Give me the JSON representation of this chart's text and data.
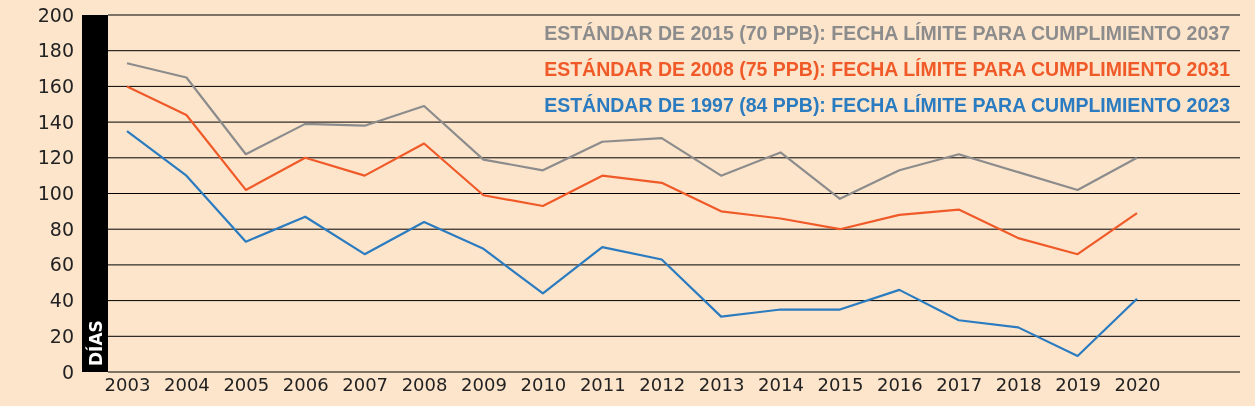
{
  "chart_data": {
    "type": "line",
    "ylabel": "DÍAS",
    "categories": [
      "2003",
      "2004",
      "2005",
      "2006",
      "2007",
      "2008",
      "2009",
      "2010",
      "2011",
      "2012",
      "2013",
      "2014",
      "2015",
      "2016",
      "2017",
      "2018",
      "2019",
      "2020"
    ],
    "ylim": [
      0,
      200
    ],
    "yticks": [
      0,
      20,
      40,
      60,
      80,
      100,
      120,
      140,
      160,
      180,
      200
    ],
    "grid": "y",
    "legend": "top right",
    "marker": "none",
    "line_style": "solid",
    "series": [
      {
        "name": "ESTÁNDAR DE 2015 (70 PPB): FECHA LÍMITE PARA CUMPLIMIENTO 2037",
        "color": "#8c8c8c",
        "values": [
          173,
          165,
          122,
          139,
          138,
          149,
          119,
          113,
          129,
          131,
          110,
          123,
          97,
          113,
          122,
          112,
          102,
          120
        ]
      },
      {
        "name": "ESTÁNDAR DE 2008 (75 PPB): FECHA LÍMITE PARA CUMPLIMIENTO 2031",
        "color": "#f05a28",
        "values": [
          160,
          144,
          102,
          120,
          110,
          128,
          99,
          93,
          110,
          106,
          90,
          86,
          80,
          88,
          91,
          75,
          66,
          89
        ]
      },
      {
        "name": "ESTÁNDAR DE 1997 (84 PPB): FECHA LÍMITE PARA CUMPLIMIENTO 2023",
        "color": "#2a7bbf",
        "values": [
          135,
          110,
          73,
          87,
          66,
          84,
          69,
          44,
          70,
          63,
          31,
          35,
          35,
          46,
          29,
          25,
          9,
          41
        ]
      }
    ]
  }
}
